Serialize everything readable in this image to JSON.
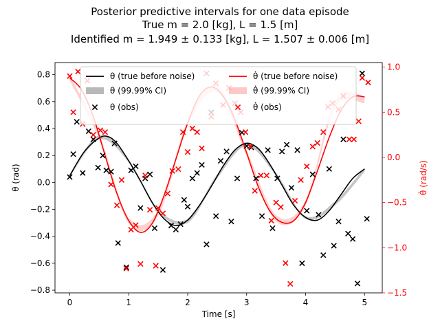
{
  "chart_data": {
    "type": "line",
    "title": [
      "Posterior predictive intervals for one data episode",
      "True m = 2.0 [kg], L = 1.5 [m]",
      "Identified m = 1.949 ± 0.133 [kg], L = 1.507 ± 0.006 [m]"
    ],
    "xlabel": "Time [s]",
    "ylabel_left": "θ (rad)",
    "ylabel_right": "θ̇ (rad/s)",
    "xlim": [
      -0.25,
      5.3
    ],
    "ylim_left": [
      -0.82,
      0.89
    ],
    "ylim_right": [
      -1.5,
      1.05
    ],
    "xticks": [
      0,
      1,
      2,
      3,
      4,
      5
    ],
    "yticks_left": [
      -0.8,
      -0.6,
      -0.4,
      -0.2,
      0.0,
      0.2,
      0.4,
      0.6,
      0.8
    ],
    "yticks_left_labels": [
      "−0.8",
      "−0.6",
      "−0.4",
      "−0.2",
      "0.0",
      "0.2",
      "0.4",
      "0.6",
      "0.8"
    ],
    "yticks_right": [
      -1.5,
      -1.0,
      -0.5,
      0.0,
      0.5,
      1.0
    ],
    "yticks_right_labels": [
      "−1.5",
      "−1.0",
      "−0.5",
      "0.0",
      "0.5",
      "1.0"
    ],
    "grid": false,
    "legend_position": "top",
    "colors": {
      "theta": "#000000",
      "theta_ci": "#808080",
      "dtheta": "#ff0000",
      "dtheta_ci": "#ff9999"
    },
    "series": [
      {
        "name": "θ (true before noise)",
        "axis": "left",
        "kind": "line",
        "color": "#000000",
        "x": [
          0.0,
          0.25,
          0.5,
          0.65,
          0.8,
          1.0,
          1.2,
          1.4,
          1.6,
          1.8,
          2.0,
          2.2,
          2.4,
          2.6,
          2.8,
          3.0,
          3.2,
          3.4,
          3.6,
          3.8,
          4.0,
          4.2,
          4.4,
          4.6,
          4.8,
          5.0
        ],
        "y": [
          0.05,
          0.23,
          0.33,
          0.34,
          0.29,
          0.16,
          0.01,
          -0.15,
          -0.27,
          -0.32,
          -0.28,
          -0.17,
          -0.03,
          0.12,
          0.24,
          0.29,
          0.25,
          0.13,
          -0.02,
          -0.17,
          -0.26,
          -0.28,
          -0.21,
          -0.09,
          0.03,
          0.1
        ]
      },
      {
        "name": "θ (99.99% CI)",
        "axis": "left",
        "kind": "band",
        "color": "#808080",
        "x": [
          0.0,
          0.5,
          1.0,
          1.5,
          2.0,
          2.5,
          3.0,
          3.5,
          4.0,
          4.5,
          5.0
        ],
        "lower": [
          0.04,
          0.32,
          0.15,
          -0.22,
          -0.3,
          0.03,
          0.27,
          0.05,
          -0.27,
          -0.17,
          0.08
        ],
        "upper": [
          0.06,
          0.35,
          0.17,
          -0.2,
          -0.27,
          0.06,
          0.3,
          0.07,
          -0.25,
          -0.14,
          0.11
        ]
      },
      {
        "name": "θ (obs)",
        "axis": "left",
        "kind": "scatter",
        "marker": "x",
        "color": "#000000",
        "x": [
          0.0,
          0.06,
          0.12,
          0.22,
          0.32,
          0.4,
          0.48,
          0.56,
          0.62,
          0.7,
          0.76,
          0.82,
          0.96,
          1.04,
          1.12,
          1.2,
          1.28,
          1.36,
          1.44,
          1.58,
          1.72,
          1.8,
          1.88,
          1.94,
          2.0,
          2.08,
          2.16,
          2.24,
          2.32,
          2.4,
          2.48,
          2.56,
          2.66,
          2.74,
          2.84,
          2.92,
          3.0,
          3.08,
          3.16,
          3.26,
          3.36,
          3.44,
          3.52,
          3.6,
          3.68,
          3.76,
          3.86,
          3.94,
          4.02,
          4.12,
          4.22,
          4.3,
          4.4,
          4.48,
          4.56,
          4.64,
          4.72,
          4.8,
          4.88,
          4.96,
          5.04
        ],
        "y": [
          0.04,
          0.21,
          0.45,
          0.07,
          0.38,
          0.32,
          0.11,
          0.2,
          0.09,
          0.08,
          0.29,
          -0.45,
          -0.63,
          0.09,
          0.12,
          -0.19,
          0.03,
          0.06,
          -0.34,
          -0.65,
          -0.32,
          -0.35,
          -0.31,
          -0.13,
          -0.18,
          0.03,
          0.07,
          0.13,
          -0.46,
          0.52,
          -0.25,
          0.16,
          0.23,
          -0.29,
          0.03,
          0.37,
          0.27,
          0.26,
          0.03,
          -0.25,
          0.24,
          -0.34,
          0.03,
          0.23,
          0.28,
          -0.04,
          0.24,
          -0.6,
          -0.21,
          0.06,
          -0.24,
          -0.54,
          0.1,
          -0.47,
          -0.29,
          0.32,
          -0.38,
          -0.42,
          -0.75,
          0.81,
          -0.27
        ]
      },
      {
        "name": "θ̇ (true before noise)",
        "axis": "right",
        "kind": "line",
        "color": "#ff0000",
        "x": [
          0.0,
          0.2,
          0.4,
          0.6,
          0.8,
          1.0,
          1.2,
          1.4,
          1.6,
          1.8,
          2.0,
          2.2,
          2.4,
          2.6,
          2.8,
          3.0,
          3.2,
          3.4,
          3.6,
          3.8,
          4.0,
          4.2,
          4.4,
          4.6,
          4.8,
          5.0
        ],
        "y": [
          0.88,
          0.75,
          0.45,
          0.02,
          -0.4,
          -0.7,
          -0.83,
          -0.73,
          -0.42,
          -0.02,
          0.38,
          0.68,
          0.78,
          0.68,
          0.42,
          0.05,
          -0.33,
          -0.6,
          -0.72,
          -0.7,
          -0.5,
          -0.15,
          0.22,
          0.52,
          0.67,
          0.67
        ]
      },
      {
        "name": "θ̇ (99.99% CI)",
        "axis": "right",
        "kind": "band",
        "color": "#ff9999",
        "x": [
          0.0,
          0.5,
          1.0,
          1.5,
          2.0,
          2.5,
          3.0,
          3.5,
          4.0,
          4.5,
          5.0
        ],
        "lower": [
          0.85,
          0.2,
          -0.73,
          -0.65,
          0.35,
          0.72,
          0.02,
          -0.71,
          -0.53,
          0.55,
          0.6
        ],
        "upper": [
          0.91,
          0.26,
          -0.67,
          -0.58,
          0.41,
          0.79,
          0.08,
          -0.64,
          -0.47,
          0.63,
          0.68
        ]
      },
      {
        "name": "θ̇ (obs)",
        "axis": "right",
        "kind": "scatter",
        "marker": "x",
        "color": "#ff0000",
        "x": [
          0.0,
          0.06,
          0.14,
          0.22,
          0.3,
          0.4,
          0.52,
          0.6,
          0.7,
          0.8,
          0.88,
          0.96,
          1.04,
          1.12,
          1.2,
          1.28,
          1.36,
          1.46,
          1.5,
          1.58,
          1.66,
          1.74,
          1.84,
          1.92,
          2.0,
          2.08,
          2.16,
          2.24,
          2.32,
          2.4,
          2.48,
          2.6,
          2.7,
          2.8,
          2.9,
          2.98,
          3.06,
          3.14,
          3.24,
          3.34,
          3.42,
          3.5,
          3.58,
          3.66,
          3.74,
          3.82,
          3.92,
          4.02,
          4.12,
          4.2,
          4.3,
          4.38,
          4.46,
          4.56,
          4.64,
          4.74,
          4.82,
          4.9,
          4.96,
          5.06
        ],
        "y": [
          0.9,
          0.5,
          0.95,
          0.37,
          0.85,
          0.25,
          0.3,
          0.28,
          -0.3,
          -0.53,
          -0.25,
          -1.23,
          -0.8,
          -0.75,
          -1.18,
          -0.2,
          -0.58,
          -1.2,
          -0.56,
          -0.62,
          -0.4,
          -0.15,
          -0.13,
          0.28,
          0.06,
          0.32,
          0.28,
          0.1,
          0.93,
          0.45,
          0.82,
          0.58,
          0.77,
          0.6,
          0.5,
          0.28,
          0.12,
          -0.37,
          -0.2,
          -0.2,
          -0.7,
          -0.5,
          -0.55,
          -1.17,
          -1.4,
          -0.48,
          -0.25,
          -0.1,
          0.12,
          0.16,
          0.28,
          0.56,
          0.6,
          0.53,
          0.68,
          0.2,
          0.2,
          0.4,
          0.88,
          0.83
        ]
      }
    ]
  }
}
